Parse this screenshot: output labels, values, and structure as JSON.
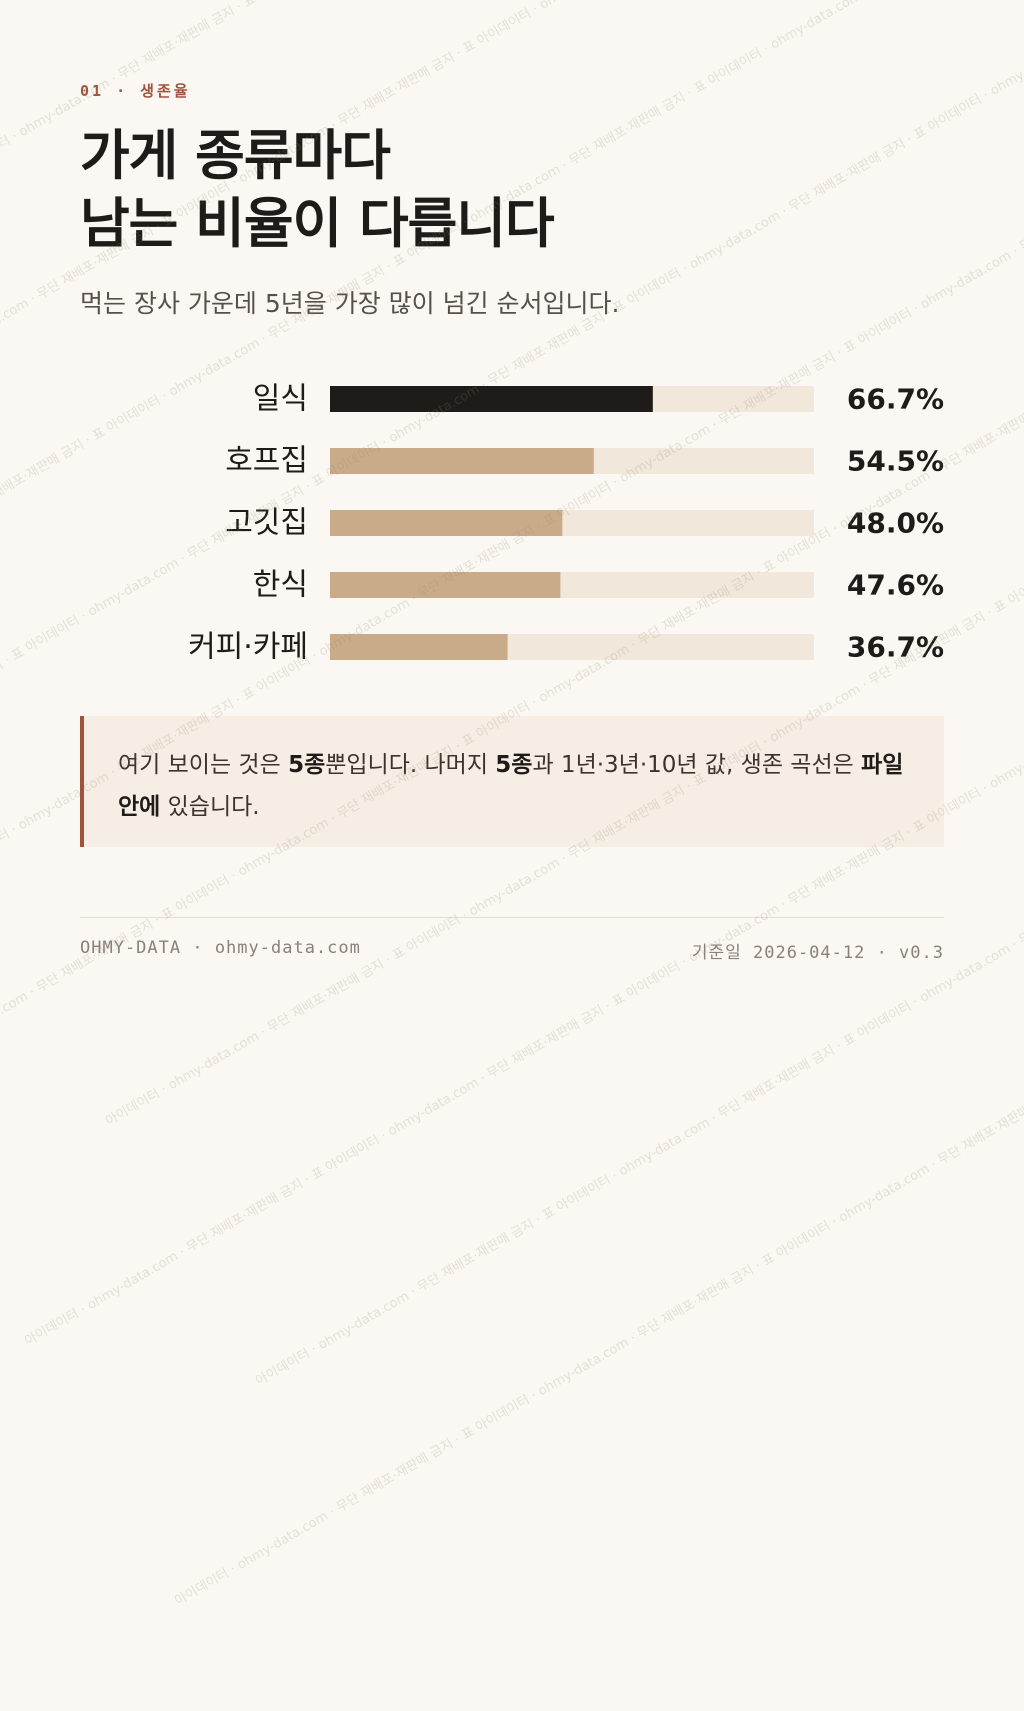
{
  "header": {
    "kicker": "01 · 생존율",
    "title_line1": "가게 종류마다",
    "title_line2": "남는 비율이 다릅니다",
    "subtitle": "먹는 장사 가운데 5년을 가장 많이 넘긴 순서입니다."
  },
  "chart_data": {
    "type": "bar",
    "orientation": "horizontal",
    "categories": [
      "일식",
      "호프집",
      "고깃집",
      "한식",
      "커피·카페"
    ],
    "values": [
      66.7,
      54.5,
      48.0,
      47.6,
      36.7
    ],
    "value_labels": [
      "66.7%",
      "54.5%",
      "48.0%",
      "47.6%",
      "36.7%"
    ],
    "xlim": [
      0,
      100
    ],
    "highlight_index": 0,
    "colors": {
      "highlight": "#1f1b18",
      "bar": "#c9ab8a",
      "track": "#f1e8db"
    }
  },
  "note": {
    "p1": "여기 보이는 것은 ",
    "b1": "5종",
    "p2": "뿐입니다. 나머지 ",
    "b2": "5종",
    "p3": "과 1년·3년·10년 값, 생존 곡선은 ",
    "b3": "파일 안에",
    "p4": " 있습니다."
  },
  "footer": {
    "left": "OHMY-DATA · ohmy-data.com",
    "right": "기준일 2026-04-12 · v0.3"
  },
  "watermark": {
    "text": "아이데이터 · ohmy-data.com · 무단 재배포·재판매 금지 · 표"
  }
}
